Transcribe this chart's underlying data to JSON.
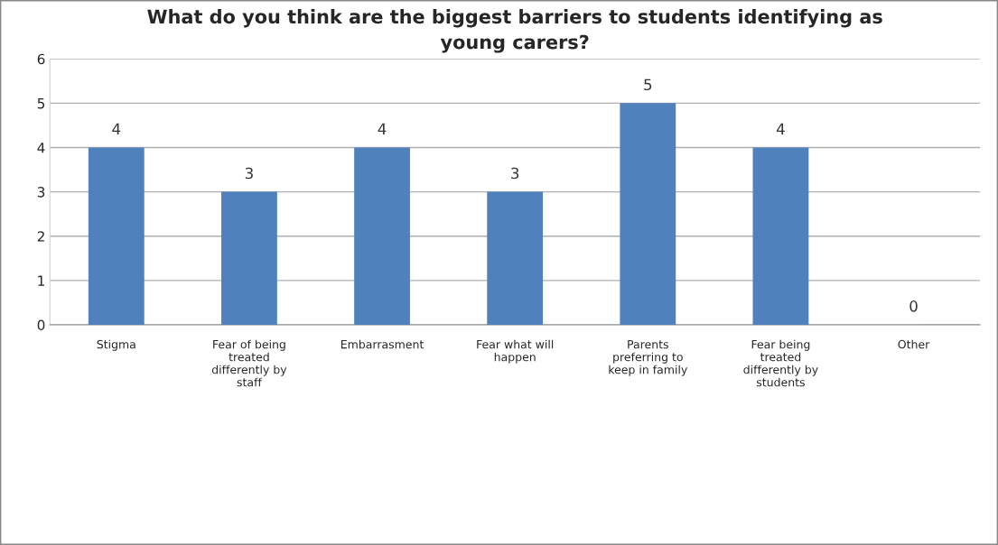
{
  "chart_data": {
    "type": "bar",
    "title": "What do you think are the biggest barriers to students identifying as young carers?",
    "categories": [
      "Stigma",
      "Fear of being treated differently by staff",
      "Embarrasment",
      "Fear what will happen",
      "Parents preferring to keep in family",
      "Fear being treated differently by students",
      "Other"
    ],
    "values": [
      4,
      3,
      4,
      3,
      5,
      4,
      0
    ],
    "color": "#4f81bd",
    "ylim": [
      0,
      6
    ],
    "yticks": [
      0,
      1,
      2,
      3,
      4,
      5,
      6
    ],
    "grid": "y",
    "data_labels": true
  }
}
